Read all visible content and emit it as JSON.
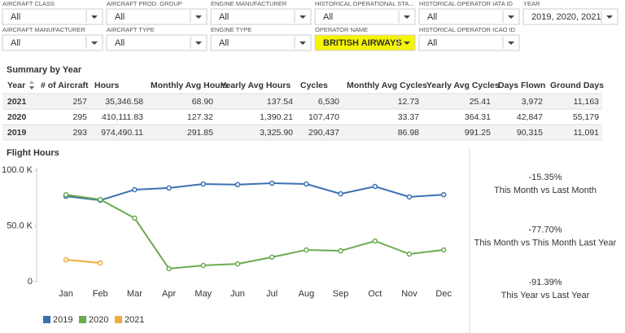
{
  "filters": {
    "rows": [
      [
        {
          "label": "AIRCRAFT CLASS",
          "value": "All"
        },
        {
          "label": "AIRCRAFT PROD. GROUP",
          "value": "All"
        },
        {
          "label": "ENGINE MANUFACTURER",
          "value": "All"
        },
        {
          "label": "HISTORICAL OPERATIONAL STA...",
          "value": "All"
        },
        {
          "label": "HISTORICAL OPERATOR IATA ID",
          "value": "All"
        },
        {
          "label": "YEAR",
          "value": "2019, 2020, 2021"
        }
      ],
      [
        {
          "label": "AIRCRAFT MANUFACTURER",
          "value": "All"
        },
        {
          "label": "AIRCRAFT TYPE",
          "value": "All"
        },
        {
          "label": "ENGINE TYPE",
          "value": "All"
        },
        {
          "label": "OPERATOR NAME",
          "value": "BRITISH AIRWAYS",
          "highlighted": true
        },
        {
          "label": "HISTORICAL OPERATOR ICAO ID",
          "value": "All"
        }
      ]
    ]
  },
  "summary": {
    "title": "Summary by Year",
    "columns": [
      "Year",
      "# of Aircraft",
      "Hours",
      "Monthly Avg Hours",
      "Yearly Avg Hours",
      "Cycles",
      "Monthly Avg Cycles",
      "Yearly Avg Cycles",
      "Days Flown",
      "Ground Days"
    ],
    "rows": [
      [
        "2021",
        "257",
        "35,346.58",
        "68.90",
        "137.54",
        "6,530",
        "12.73",
        "25.41",
        "3,972",
        "11,163"
      ],
      [
        "2020",
        "295",
        "410,111.83",
        "127.32",
        "1,390.21",
        "107,470",
        "33.37",
        "364.31",
        "42,847",
        "55,179"
      ],
      [
        "2019",
        "293",
        "974,490.11",
        "291.85",
        "3,325.90",
        "290,437",
        "86.98",
        "991.25",
        "90,315",
        "11,091"
      ]
    ]
  },
  "chart_data": {
    "type": "line",
    "title": "Flight Hours",
    "categories": [
      "Jan",
      "Feb",
      "Mar",
      "Apr",
      "May",
      "Jun",
      "Jul",
      "Aug",
      "Sep",
      "Oct",
      "Nov",
      "Dec"
    ],
    "series": [
      {
        "name": "2019",
        "color": "#3b70b2",
        "values": [
          76600,
          73000,
          82500,
          84000,
          87600,
          87000,
          88300,
          87600,
          78800,
          85400,
          76000,
          78000
        ]
      },
      {
        "name": "2020",
        "color": "#6aab4f",
        "values": [
          78000,
          73700,
          57000,
          11700,
          14600,
          16000,
          22000,
          28500,
          27700,
          36500,
          24800,
          28500
        ]
      },
      {
        "name": "2021",
        "color": "#f0ac3c",
        "values": [
          19700,
          16800,
          null,
          null,
          null,
          null,
          null,
          null,
          null,
          null,
          null,
          null
        ]
      }
    ],
    "ylim": [
      0,
      100000
    ],
    "yticks": [
      0,
      {
        "value": 50000,
        "label": "50.0 K"
      },
      {
        "value": 100000,
        "label": "100.0 K"
      }
    ],
    "grid": false
  },
  "kpis": [
    {
      "value": "-15.35%",
      "label": "This Month vs Last Month"
    },
    {
      "value": "-77.70%",
      "label": "This Month vs This Month Last Year"
    },
    {
      "value": "-91.39%",
      "label": "This Year vs Last Year"
    }
  ]
}
